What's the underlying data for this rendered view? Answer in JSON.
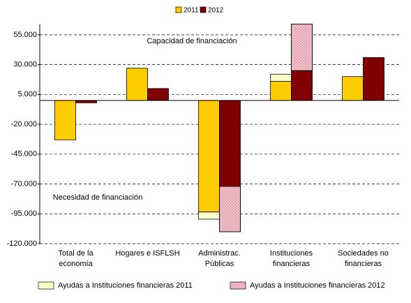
{
  "chart_data": {
    "type": "bar",
    "categories": [
      "Total de la\neconomía",
      "Hogares e ISFLSH",
      "Administrac.\nPúblicas",
      "Instituciones\nfinancieras",
      "Sociedades no\nfinancieras"
    ],
    "series": [
      {
        "name": "2011",
        "color": "#ffcc00",
        "values": [
          -33000,
          27000,
          -93500,
          16000,
          20000
        ]
      },
      {
        "name": "2012",
        "color": "#800000",
        "values": [
          -2000,
          10000,
          -72000,
          25000,
          36000
        ]
      },
      {
        "name": "Ayudas a Instituciones financieras 2011",
        "color": "#ffffcc",
        "stack_on": 0,
        "values": [
          null,
          null,
          -6000,
          6000,
          null
        ]
      },
      {
        "name": "Ayudas a Instituciones financieras 2012",
        "color": "#f6c6d0",
        "stack_on": 1,
        "pattern": true,
        "values": [
          null,
          null,
          -38000,
          39000,
          null
        ]
      }
    ],
    "ylim": [
      -120000,
      63700
    ],
    "yticks": [
      {
        "value": 55000,
        "label": "55.000"
      },
      {
        "value": 30000,
        "label": "30.000"
      },
      {
        "value": 5000,
        "label": "5.000"
      },
      {
        "value": -20000,
        "label": "-20.000"
      },
      {
        "value": -45000,
        "label": "-45.000"
      },
      {
        "value": -70000,
        "label": "-70.000"
      },
      {
        "value": -95000,
        "label": "-95.000"
      },
      {
        "value": -120000,
        "label": "-120.000"
      }
    ],
    "grid": true,
    "annotations": [
      "Capacidad de financiación",
      "Necesidad de financiación"
    ]
  }
}
